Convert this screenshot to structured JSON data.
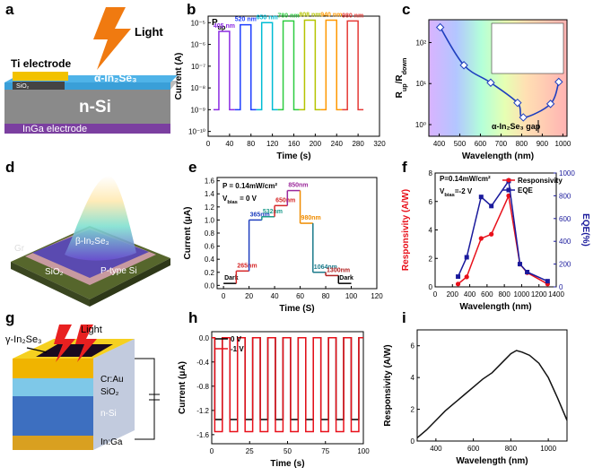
{
  "chart_data": [
    {
      "panel_label": "b",
      "type": "line",
      "title": [
        {
          "t": "P"
        },
        {
          "sub": "up"
        }
      ],
      "xlabel": "Time (s)",
      "ylabel": "Current (A)",
      "ylog": true,
      "series_labels": "inline",
      "xlim": [
        0,
        320
      ],
      "xticks": [
        0,
        40,
        80,
        120,
        160,
        200,
        240,
        280,
        320
      ],
      "ylim": [
        6e-11,
        2e-05
      ],
      "yticks": [
        {
          "value": 1e-10,
          "label": "10⁻¹⁰"
        },
        {
          "value": 1e-09,
          "label": "10⁻⁹"
        },
        {
          "value": 1e-08,
          "label": "10⁻⁸"
        },
        {
          "value": 1e-07,
          "label": "10⁻⁷"
        },
        {
          "value": 1e-06,
          "label": "10⁻⁶"
        },
        {
          "value": 1e-05,
          "label": "10⁻⁵"
        }
      ],
      "series": [
        {
          "name": "405 nm",
          "color": "#8b2be2",
          "x": [
            10,
            20,
            20,
            40,
            40,
            50
          ],
          "values": [
            1e-09,
            1e-09,
            4e-06,
            4e-06,
            1e-09,
            1e-09
          ]
        },
        {
          "name": "520 nm",
          "color": "#1f3fff",
          "x": [
            50,
            60,
            60,
            80,
            80,
            90
          ],
          "values": [
            1e-09,
            1e-09,
            8e-06,
            8e-06,
            1e-09,
            1e-09
          ]
        },
        {
          "name": "650 nm",
          "color": "#00bcd4",
          "x": [
            90,
            100,
            100,
            120,
            120,
            130
          ],
          "values": [
            1e-09,
            1e-09,
            1e-05,
            1e-05,
            1e-09,
            1e-09
          ]
        },
        {
          "name": "780 nm",
          "color": "#2ecc40",
          "x": [
            130,
            140,
            140,
            160,
            160,
            170
          ],
          "values": [
            1e-09,
            1e-09,
            1.2e-05,
            1.2e-05,
            1e-09,
            1e-09
          ]
        },
        {
          "name": "808 nm",
          "color": "#b5c400",
          "x": [
            170,
            180,
            180,
            200,
            200,
            210
          ],
          "values": [
            1e-09,
            1e-09,
            1.3e-05,
            1.3e-05,
            1e-09,
            1e-09
          ]
        },
        {
          "name": "940 nm",
          "color": "#ff9800",
          "x": [
            210,
            220,
            220,
            240,
            240,
            250
          ],
          "values": [
            1e-09,
            1e-09,
            1.3e-05,
            1.3e-05,
            1e-09,
            1e-09
          ]
        },
        {
          "name": "980 nm",
          "color": "#e53935",
          "x": [
            250,
            260,
            260,
            280,
            280,
            290
          ],
          "values": [
            1e-09,
            1e-09,
            1.2e-05,
            1.2e-05,
            1e-09,
            1e-09
          ]
        }
      ]
    },
    {
      "panel_label": "c",
      "type": "scatter",
      "curve": "smooth",
      "background": "spectrum",
      "xlabel": "Wavelength (nm)",
      "ylabel": [
        {
          "t": "R"
        },
        {
          "sub": "up"
        },
        {
          "t": "/R"
        },
        {
          "sub": "down"
        }
      ],
      "ylog": true,
      "xlim": [
        350,
        1020
      ],
      "xticks": [
        400,
        500,
        600,
        700,
        800,
        900,
        1000
      ],
      "ylim": [
        0.52,
        360
      ],
      "yticks": [
        {
          "value": 1,
          "label": "10⁰"
        },
        {
          "value": 10,
          "label": "10¹"
        },
        {
          "value": 100,
          "label": "10²"
        }
      ],
      "annotations": [
        "α-In₂Se₃ gap"
      ],
      "series": [
        {
          "name": null,
          "color": "#1f3fbf",
          "marker": "diamond",
          "x": [
            405,
            520,
            650,
            780,
            808,
            940,
            980
          ],
          "values": [
            235,
            28,
            10.5,
            3.4,
            1.5,
            3.2,
            11
          ]
        }
      ]
    },
    {
      "panel_label": "e",
      "type": "line",
      "steps": true,
      "series_labels": "inline",
      "xlabel": "Time (S)",
      "ylabel": "Current (μA)",
      "xlim": [
        -5,
        120
      ],
      "xticks": [
        0,
        20,
        40,
        60,
        80,
        100,
        120
      ],
      "ylim": [
        -0.05,
        1.65
      ],
      "yticks": [
        {
          "value": 0,
          "label": "0.0"
        },
        0.2,
        0.4,
        0.6,
        0.8,
        {
          "value": 1,
          "label": "1.0"
        },
        1.2,
        1.4,
        1.6
      ],
      "annotations": [
        "P = 0.14mW/cm²",
        [
          {
            "t": "V"
          },
          {
            "sub": "bias"
          },
          {
            "t": " = 0 V"
          }
        ]
      ],
      "series": [
        {
          "name": "Dark",
          "color": "#000000",
          "x": [
            0,
            10
          ],
          "values": [
            0.03,
            0.03
          ]
        },
        {
          "name": "265nm",
          "color": "#d62728",
          "x": [
            10,
            20
          ],
          "values": [
            0.22,
            0.22
          ]
        },
        {
          "name": "365nm",
          "color": "#1f3fbf",
          "x": [
            20,
            30
          ],
          "values": [
            1.0,
            1.0
          ]
        },
        {
          "name": "532nm",
          "color": "#1a9a8a",
          "x": [
            30,
            40
          ],
          "values": [
            1.05,
            1.05
          ]
        },
        {
          "name": "650nm",
          "color": "#d62728",
          "x": [
            40,
            50
          ],
          "values": [
            1.22,
            1.22
          ]
        },
        {
          "name": "850nm",
          "color": "#9c2a9c",
          "x": [
            50,
            60
          ],
          "values": [
            1.45,
            1.45
          ]
        },
        {
          "name": "980nm",
          "color": "#f08c00",
          "x": [
            60,
            70
          ],
          "values": [
            0.95,
            0.95
          ]
        },
        {
          "name": "1064nm",
          "color": "#1a7a8a",
          "x": [
            70,
            80
          ],
          "values": [
            0.2,
            0.2
          ]
        },
        {
          "name": "1300nm",
          "color": "#b22222",
          "x": [
            80,
            90
          ],
          "values": [
            0.15,
            0.15
          ]
        },
        {
          "name": "Dark",
          "color": "#000000",
          "x": [
            90,
            100
          ],
          "values": [
            0.03,
            0.03
          ]
        }
      ]
    },
    {
      "panel_label": "f",
      "type": "line",
      "legend": "upper right",
      "xlabel": "Wavelength (nm)",
      "ylabel": "Responsivity (A/W)",
      "y2label": "EQE(%)",
      "xlim": [
        0,
        1400
      ],
      "xticks": [
        0,
        200,
        400,
        600,
        800,
        1000,
        1200,
        1400
      ],
      "ylim": [
        0,
        8
      ],
      "yticks": [
        0,
        2,
        4,
        6,
        8
      ],
      "y2lim": [
        0,
        1000
      ],
      "y2ticks": [
        0,
        200,
        400,
        600,
        800,
        1000
      ],
      "annotations": [
        "P=0.14mW/cm²",
        [
          {
            "t": "V"
          },
          {
            "sub": "bias"
          },
          {
            "t": "=-2 V"
          }
        ]
      ],
      "x": [
        265,
        365,
        532,
        650,
        850,
        980,
        1064,
        1300
      ],
      "series": [
        {
          "name": "Responsivity",
          "color": "#e8101a",
          "marker": "circle",
          "values": [
            0.2,
            0.7,
            3.4,
            3.7,
            6.4,
            1.6,
            1.0,
            0.2
          ]
        },
        {
          "name": "EQE",
          "color": "#1a1a9c",
          "marker": "square",
          "axis": "y2",
          "values": [
            90,
            260,
            790,
            710,
            930,
            200,
            130,
            50
          ]
        }
      ]
    },
    {
      "panel_label": "h",
      "type": "line",
      "legend": "upper left",
      "xlabel": "Time (s)",
      "ylabel": "Current (μA)",
      "xlim": [
        0,
        100
      ],
      "xticks": [
        0,
        25,
        50,
        75,
        100
      ],
      "ylim": [
        -1.75,
        0.1
      ],
      "yticks": [
        {
          "value": 0,
          "label": "0.0"
        },
        -0.4,
        -0.8,
        -1.2,
        -1.6
      ],
      "x": [
        0,
        2,
        2,
        7,
        7,
        12,
        12,
        17,
        17,
        22,
        22,
        27,
        27,
        32,
        32,
        37,
        37,
        42,
        42,
        47,
        47,
        52,
        52,
        57,
        57,
        62,
        62,
        67,
        67,
        72,
        72,
        77,
        77,
        82,
        82,
        87,
        87,
        92,
        92,
        97,
        97,
        100
      ],
      "series": [
        {
          "name": "0 V",
          "color": "#000000",
          "values": [
            0,
            0,
            -1.35,
            -1.35,
            0,
            0,
            -1.35,
            -1.35,
            0,
            0,
            -1.35,
            -1.35,
            0,
            0,
            -1.35,
            -1.35,
            0,
            0,
            -1.35,
            -1.35,
            0,
            0,
            -1.35,
            -1.35,
            0,
            0,
            -1.35,
            -1.35,
            0,
            0,
            -1.35,
            -1.35,
            0,
            0,
            -1.35,
            -1.35,
            0,
            0,
            -1.35,
            -1.35,
            0,
            0
          ]
        },
        {
          "name": "-1 V",
          "color": "#e8101a",
          "values": [
            0,
            0,
            -1.55,
            -1.55,
            0,
            0,
            -1.55,
            -1.55,
            0,
            0,
            -1.55,
            -1.55,
            0,
            0,
            -1.55,
            -1.55,
            0,
            0,
            -1.55,
            -1.55,
            0,
            0,
            -1.55,
            -1.55,
            0,
            0,
            -1.55,
            -1.55,
            0,
            0,
            -1.55,
            -1.55,
            0,
            0,
            -1.55,
            -1.55,
            0,
            0,
            -1.55,
            -1.55,
            0,
            0
          ]
        }
      ]
    },
    {
      "panel_label": "i",
      "type": "line",
      "xlabel": "Wavelength (nm)",
      "ylabel": "Responsivity (A/W)",
      "xlim": [
        300,
        1100
      ],
      "xticks": [
        400,
        600,
        800,
        1000
      ],
      "ylim": [
        0,
        7
      ],
      "yticks": [
        0,
        2,
        4,
        6
      ],
      "x": [
        300,
        350,
        400,
        450,
        500,
        550,
        600,
        650,
        700,
        750,
        800,
        830,
        860,
        900,
        950,
        1000,
        1050,
        1100
      ],
      "series": [
        {
          "name": null,
          "color": "#111111",
          "values": [
            0.2,
            0.7,
            1.3,
            1.9,
            2.4,
            2.9,
            3.4,
            3.9,
            4.3,
            4.9,
            5.5,
            5.7,
            5.6,
            5.4,
            4.9,
            4.0,
            2.7,
            1.3
          ]
        }
      ]
    }
  ],
  "diagrams": [
    {
      "panel_label": "a",
      "labels": [
        "Light",
        "Ti electrode",
        "α-In₂Se₃",
        "SiO₂",
        "n-Si",
        "InGa electrode"
      ]
    },
    {
      "panel_label": "d",
      "labels": [
        "β-In₂Se₃",
        "SiO₂",
        "P-type Si",
        "Gr"
      ]
    },
    {
      "panel_label": "g",
      "labels": [
        "γ-In₂Se₃",
        "Light",
        "Cr:Au",
        "SiO₂",
        "n-Si",
        "In:Ga"
      ]
    }
  ]
}
